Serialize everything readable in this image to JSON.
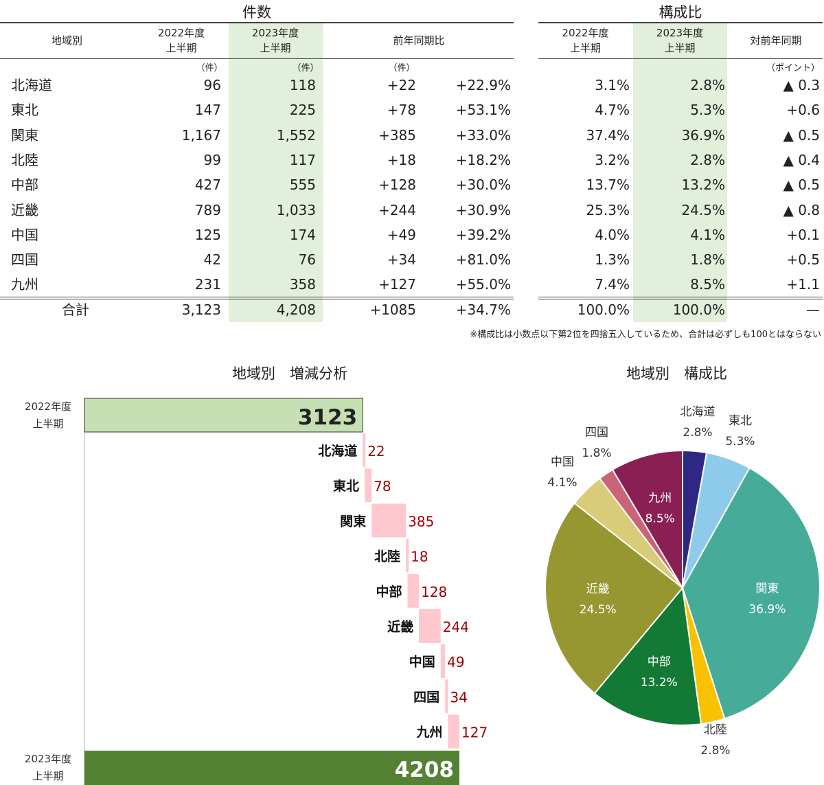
{
  "table": {
    "count_section_title": "件数",
    "ratio_section_title": "構成比",
    "headers": {
      "region": "地域別",
      "h2022_line1": "2022年度",
      "h2022_line2": "上半期",
      "h2023_line1": "2023年度",
      "h2023_line2": "上半期",
      "yoy": "前年同期比",
      "r2022_line1": "2022年度",
      "r2022_line2": "上半期",
      "r2023_line1": "2023年度",
      "r2023_line2": "上半期",
      "ryoy": "対前年同期"
    },
    "units": {
      "c2022": "（件）",
      "c2023": "（件）",
      "diff": "（件）",
      "point": "（ポイント）"
    },
    "rows": [
      {
        "region": "北海道",
        "c2022": "96",
        "c2023": "118",
        "diff": "+22",
        "pct": "+22.9%",
        "r2022": "3.1%",
        "r2023": "2.8%",
        "rdiff": "▲ 0.3"
      },
      {
        "region": "東北",
        "c2022": "147",
        "c2023": "225",
        "diff": "+78",
        "pct": "+53.1%",
        "r2022": "4.7%",
        "r2023": "5.3%",
        "rdiff": "+0.6"
      },
      {
        "region": "関東",
        "c2022": "1,167",
        "c2023": "1,552",
        "diff": "+385",
        "pct": "+33.0%",
        "r2022": "37.4%",
        "r2023": "36.9%",
        "rdiff": "▲ 0.5"
      },
      {
        "region": "北陸",
        "c2022": "99",
        "c2023": "117",
        "diff": "+18",
        "pct": "+18.2%",
        "r2022": "3.2%",
        "r2023": "2.8%",
        "rdiff": "▲ 0.4"
      },
      {
        "region": "中部",
        "c2022": "427",
        "c2023": "555",
        "diff": "+128",
        "pct": "+30.0%",
        "r2022": "13.7%",
        "r2023": "13.2%",
        "rdiff": "▲ 0.5"
      },
      {
        "region": "近畿",
        "c2022": "789",
        "c2023": "1,033",
        "diff": "+244",
        "pct": "+30.9%",
        "r2022": "25.3%",
        "r2023": "24.5%",
        "rdiff": "▲ 0.8"
      },
      {
        "region": "中国",
        "c2022": "125",
        "c2023": "174",
        "diff": "+49",
        "pct": "+39.2%",
        "r2022": "4.0%",
        "r2023": "4.1%",
        "rdiff": "+0.1"
      },
      {
        "region": "四国",
        "c2022": "42",
        "c2023": "76",
        "diff": "+34",
        "pct": "+81.0%",
        "r2022": "1.3%",
        "r2023": "1.8%",
        "rdiff": "+0.5"
      },
      {
        "region": "九州",
        "c2022": "231",
        "c2023": "358",
        "diff": "+127",
        "pct": "+55.0%",
        "r2022": "7.4%",
        "r2023": "8.5%",
        "rdiff": "+1.1"
      }
    ],
    "total": {
      "region": "合計",
      "c2022": "3,123",
      "c2023": "4,208",
      "diff": "+1085",
      "pct": "+34.7%",
      "r2022": "100.0%",
      "r2023": "100.0%",
      "rdiff": "—"
    },
    "note": "※構成比は小数点以下第2位を四捨五入しているため、合計は必ずしも100とはならない",
    "highlight_color": "#e2efda"
  },
  "chart_data": [
    {
      "type": "bar",
      "subtype": "waterfall",
      "title": "地域別　増減分析",
      "start": {
        "label_line1": "2022年度",
        "label_line2": "上半期",
        "value": 3123,
        "color": "#c6e0b4"
      },
      "end": {
        "label_line1": "2023年度",
        "label_line2": "上半期",
        "value": 4208,
        "color": "#548235"
      },
      "categories": [
        "北海道",
        "東北",
        "関東",
        "北陸",
        "中部",
        "近畿",
        "中国",
        "四国",
        "九州"
      ],
      "values": [
        22,
        78,
        385,
        18,
        128,
        244,
        49,
        34,
        127
      ],
      "increase_color": "#ffc7ce",
      "value_label_color": "#9c0006"
    },
    {
      "type": "pie",
      "title": "地域別　構成比",
      "categories": [
        "北海道",
        "東北",
        "関東",
        "北陸",
        "中部",
        "近畿",
        "中国",
        "四国",
        "九州"
      ],
      "values": [
        2.8,
        5.3,
        36.9,
        2.8,
        13.2,
        24.5,
        4.1,
        1.8,
        8.5
      ],
      "labels": [
        "2.8%",
        "5.3%",
        "36.9%",
        "2.8%",
        "13.2%",
        "24.5%",
        "4.1%",
        "1.8%",
        "8.5%"
      ],
      "colors": [
        "#2e2882",
        "#8ecae9",
        "#47ab9a",
        "#f9c100",
        "#137a35",
        "#979732",
        "#d9cc78",
        "#cb6476",
        "#8a1f54"
      ]
    }
  ]
}
